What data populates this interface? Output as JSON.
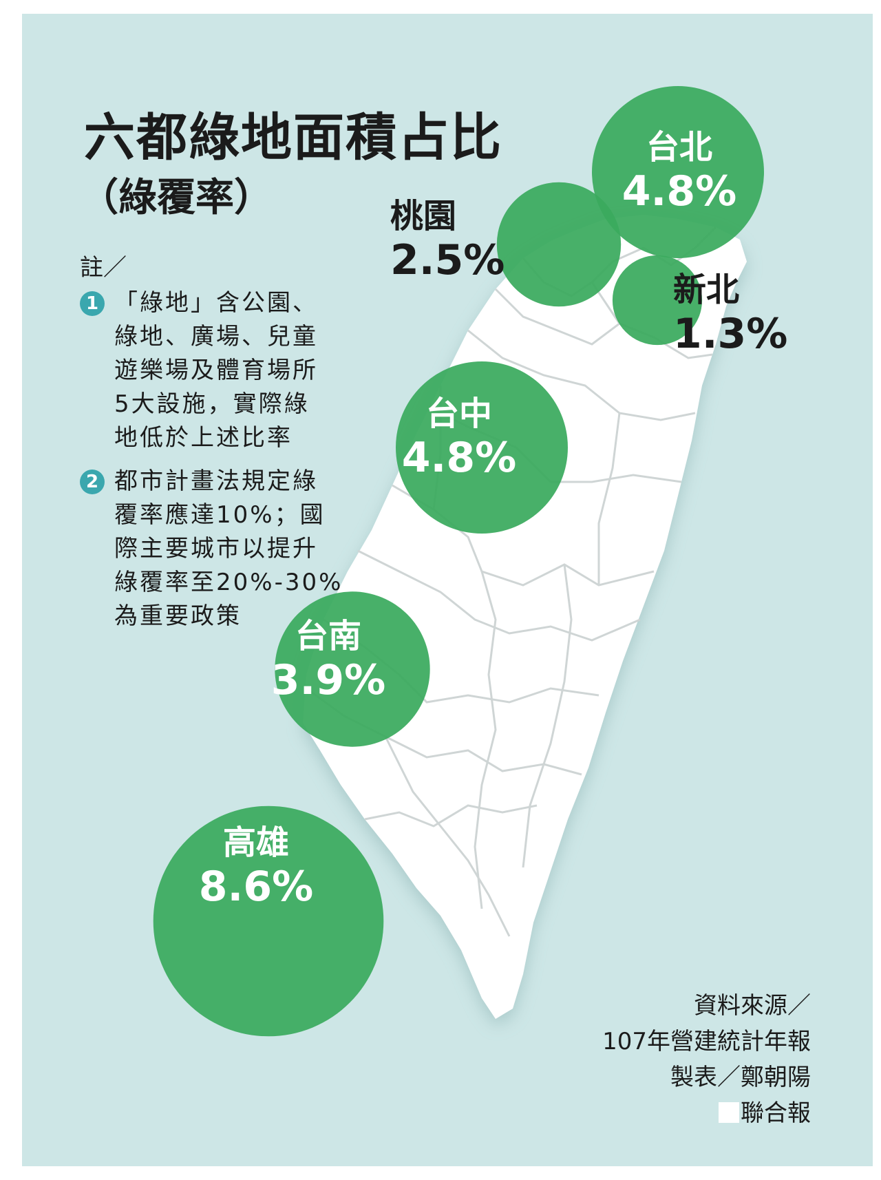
{
  "title": "六都綠地面積占比",
  "subtitle": "（綠覆率）",
  "notes": {
    "heading": "註／",
    "items": [
      {
        "num": "1",
        "lines": [
          "「綠地」含公園、",
          "綠地、廣場、兒童",
          "遊樂場及體育場所",
          "5大設施，實際綠",
          "地低於上述比率"
        ]
      },
      {
        "num": "2",
        "lines": [
          "都市計畫法規定綠",
          "覆率應達10%；國",
          "際主要城市以提升",
          "綠覆率至20%-30%",
          "為重要政策"
        ]
      }
    ]
  },
  "chart_data": {
    "type": "bubble-map",
    "title": "六都綠地面積占比",
    "subtitle": "（綠覆率）",
    "unit": "%",
    "categories": [
      "台北",
      "新北",
      "桃園",
      "台中",
      "台南",
      "高雄"
    ],
    "values": [
      4.8,
      1.3,
      2.5,
      4.8,
      3.9,
      8.6
    ],
    "labels": [
      "4.8%",
      "1.3%",
      "2.5%",
      "4.8%",
      "3.9%",
      "8.6%"
    ]
  },
  "source": {
    "line1": "資料來源／",
    "line2": "107年營建統計年報",
    "line3": "製表／鄭朝陽",
    "publisher": "聯合報"
  },
  "colors": {
    "background": "#cde6e6",
    "bubble": "#3aaa5e",
    "land": "#ffffff",
    "border": "#cfd5d5"
  }
}
